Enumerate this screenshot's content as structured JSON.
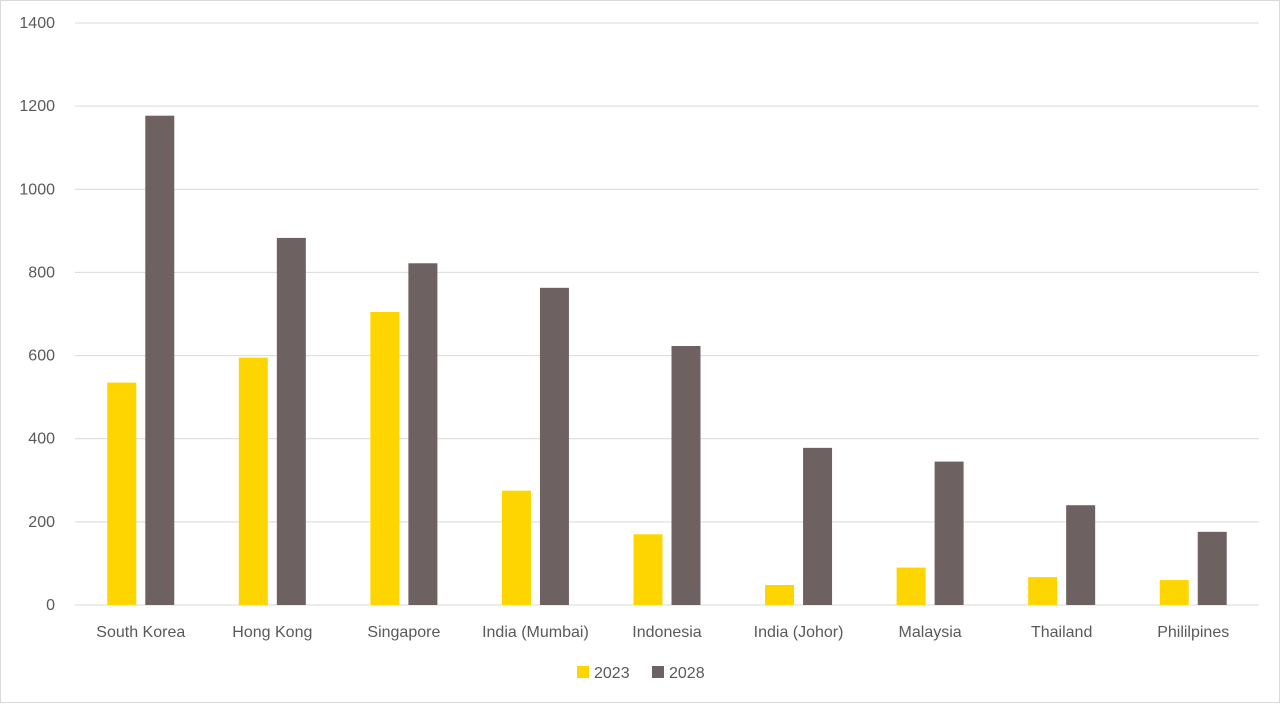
{
  "chart_data": {
    "type": "bar",
    "categories": [
      "South Korea",
      "Hong Kong",
      "Singapore",
      "India (Mumbai)",
      "Indonesia",
      "India (Johor)",
      "Malaysia",
      "Thailand",
      "Phililpines"
    ],
    "series": [
      {
        "name": "2023",
        "color": "#FFD500",
        "values": [
          535,
          595,
          705,
          275,
          170,
          48,
          90,
          67,
          60
        ]
      },
      {
        "name": "2028",
        "color": "#6E6161",
        "values": [
          1177,
          883,
          822,
          763,
          623,
          378,
          345,
          240,
          176
        ]
      }
    ],
    "title": "",
    "xlabel": "",
    "ylabel": "",
    "ylim": [
      0,
      1400
    ],
    "yticks": [
      0,
      200,
      400,
      600,
      800,
      1000,
      1200,
      1400
    ],
    "grid": true,
    "legend_position": "bottom"
  }
}
